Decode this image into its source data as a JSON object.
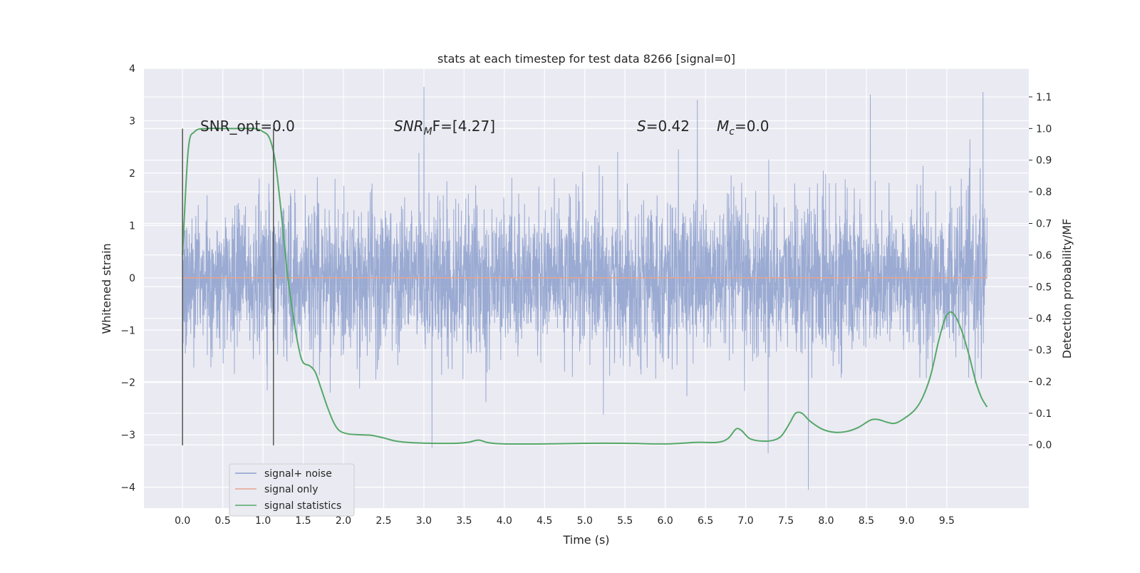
{
  "chart_data": {
    "type": "line",
    "title": "stats at each timestep for test data 8266 [signal=0]",
    "xlabel": "Time (s)",
    "ylabel_left": "Whitened strain",
    "ylabel_right": "Detection probability/MF",
    "xlim": [
      -0.48,
      10.52
    ],
    "ylim_left": [
      -4.4,
      4.0
    ],
    "ylim_right": [
      -0.2,
      1.19
    ],
    "x_ticks": [
      "0.0",
      "0.5",
      "1.0",
      "1.5",
      "2.0",
      "2.5",
      "3.0",
      "3.5",
      "4.0",
      "4.5",
      "5.0",
      "5.5",
      "6.0",
      "6.5",
      "7.0",
      "7.5",
      "8.0",
      "8.5",
      "9.0",
      "9.5"
    ],
    "y_ticks_left": [
      "4",
      "3",
      "2",
      "1",
      "0",
      "−1",
      "−2",
      "−3",
      "−4"
    ],
    "y_ticks_right": [
      "1.1",
      "1.0",
      "0.9",
      "0.8",
      "0.7",
      "0.6",
      "0.5",
      "0.4",
      "0.3",
      "0.2",
      "0.1",
      "0.0"
    ],
    "grid": true,
    "legend_position": "lower-left",
    "annotations": {
      "snr_opt": "SNR_opt=0.0",
      "snr_mf_prefix": "SNR",
      "snr_mf_sub": "M",
      "snr_mf_suffix": "F=[4.27]",
      "s_italic": "S",
      "s_value": "=0.42",
      "mc_italic": "M",
      "mc_sub": "c",
      "mc_value": "=0.0"
    },
    "vertical_markers": [
      0.0,
      1.13
    ],
    "series": [
      {
        "name": "signal+ noise",
        "color": "#8c9fcd",
        "axis": "left",
        "x_range": [
          0.0,
          10.0
        ],
        "typical_range": [
          -1.7,
          1.8
        ],
        "note_peaks": [
          {
            "x": 3.0,
            "y": 3.65
          },
          {
            "x": 9.95,
            "y": 3.55
          },
          {
            "x": 6.4,
            "y": 3.4
          },
          {
            "x": 8.55,
            "y": 3.5
          },
          {
            "x": 7.78,
            "y": -4.05
          },
          {
            "x": 3.1,
            "y": -3.25
          },
          {
            "x": 7.28,
            "y": -3.35
          }
        ]
      },
      {
        "name": "signal only",
        "color": "#e8a58c",
        "axis": "left",
        "points": [
          [
            0.0,
            0.0
          ],
          [
            10.0,
            0.0
          ]
        ]
      },
      {
        "name": "signal statistics",
        "color": "#55a868",
        "axis": "right",
        "points": [
          [
            0.0,
            0.6
          ],
          [
            0.07,
            0.93
          ],
          [
            0.15,
            0.99
          ],
          [
            0.3,
            1.0
          ],
          [
            0.5,
            1.0
          ],
          [
            0.7,
            1.0
          ],
          [
            0.9,
            1.0
          ],
          [
            1.0,
            0.99
          ],
          [
            1.08,
            0.97
          ],
          [
            1.15,
            0.9
          ],
          [
            1.22,
            0.75
          ],
          [
            1.3,
            0.55
          ],
          [
            1.38,
            0.4
          ],
          [
            1.45,
            0.3
          ],
          [
            1.5,
            0.26
          ],
          [
            1.58,
            0.25
          ],
          [
            1.65,
            0.23
          ],
          [
            1.72,
            0.18
          ],
          [
            1.8,
            0.12
          ],
          [
            1.88,
            0.07
          ],
          [
            1.95,
            0.045
          ],
          [
            2.05,
            0.035
          ],
          [
            2.2,
            0.032
          ],
          [
            2.35,
            0.03
          ],
          [
            2.5,
            0.022
          ],
          [
            2.65,
            0.012
          ],
          [
            2.85,
            0.007
          ],
          [
            3.1,
            0.005
          ],
          [
            3.4,
            0.005
          ],
          [
            3.55,
            0.008
          ],
          [
            3.68,
            0.015
          ],
          [
            3.8,
            0.007
          ],
          [
            4.0,
            0.003
          ],
          [
            4.5,
            0.003
          ],
          [
            5.0,
            0.005
          ],
          [
            5.5,
            0.005
          ],
          [
            6.0,
            0.003
          ],
          [
            6.4,
            0.008
          ],
          [
            6.65,
            0.008
          ],
          [
            6.78,
            0.02
          ],
          [
            6.88,
            0.05
          ],
          [
            6.95,
            0.045
          ],
          [
            7.05,
            0.02
          ],
          [
            7.2,
            0.012
          ],
          [
            7.35,
            0.015
          ],
          [
            7.45,
            0.03
          ],
          [
            7.55,
            0.07
          ],
          [
            7.62,
            0.1
          ],
          [
            7.7,
            0.1
          ],
          [
            7.8,
            0.075
          ],
          [
            7.95,
            0.05
          ],
          [
            8.1,
            0.04
          ],
          [
            8.25,
            0.042
          ],
          [
            8.4,
            0.055
          ],
          [
            8.55,
            0.078
          ],
          [
            8.65,
            0.08
          ],
          [
            8.75,
            0.072
          ],
          [
            8.85,
            0.068
          ],
          [
            8.95,
            0.08
          ],
          [
            9.1,
            0.11
          ],
          [
            9.2,
            0.15
          ],
          [
            9.3,
            0.22
          ],
          [
            9.4,
            0.33
          ],
          [
            9.48,
            0.4
          ],
          [
            9.55,
            0.42
          ],
          [
            9.62,
            0.4
          ],
          [
            9.7,
            0.35
          ],
          [
            9.78,
            0.28
          ],
          [
            9.86,
            0.2
          ],
          [
            9.93,
            0.15
          ],
          [
            10.0,
            0.12
          ]
        ]
      }
    ]
  }
}
